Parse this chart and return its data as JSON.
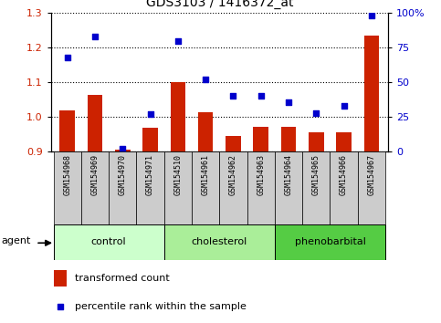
{
  "title": "GDS3103 / 1416372_at",
  "samples": [
    "GSM154968",
    "GSM154969",
    "GSM154970",
    "GSM154971",
    "GSM154510",
    "GSM154961",
    "GSM154962",
    "GSM154963",
    "GSM154964",
    "GSM154965",
    "GSM154966",
    "GSM154967"
  ],
  "bar_values": [
    1.02,
    1.065,
    0.905,
    0.97,
    1.1,
    1.015,
    0.945,
    0.972,
    0.972,
    0.955,
    0.955,
    1.235
  ],
  "scatter_values": [
    68,
    83,
    2,
    27,
    80,
    52,
    40,
    40,
    36,
    28,
    33,
    98
  ],
  "bar_color": "#cc2200",
  "scatter_color": "#0000cc",
  "ylim_left": [
    0.9,
    1.3
  ],
  "ylim_right": [
    0,
    100
  ],
  "yticks_left": [
    0.9,
    1.0,
    1.1,
    1.2,
    1.3
  ],
  "yticks_right": [
    0,
    25,
    50,
    75,
    100
  ],
  "ytick_labels_right": [
    "0",
    "25",
    "50",
    "75",
    "100%"
  ],
  "groups": [
    {
      "label": "control",
      "start": 0,
      "end": 3,
      "color": "#ccffcc"
    },
    {
      "label": "cholesterol",
      "start": 4,
      "end": 7,
      "color": "#aaee99"
    },
    {
      "label": "phenobarbital",
      "start": 8,
      "end": 11,
      "color": "#55cc44"
    }
  ],
  "agent_label": "agent",
  "legend_bar_label": "transformed count",
  "legend_scatter_label": "percentile rank within the sample",
  "box_color": "#cccccc",
  "plot_bg": "#ffffff"
}
